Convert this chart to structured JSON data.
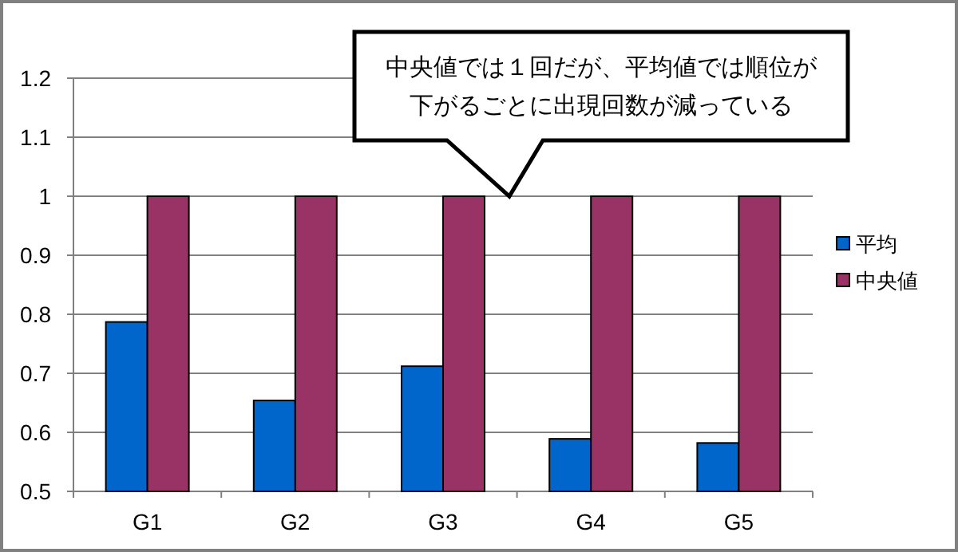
{
  "chart_data": {
    "type": "bar",
    "categories": [
      "G1",
      "G2",
      "G3",
      "G4",
      "G5"
    ],
    "series": [
      {
        "name": "平均",
        "color": "#0066cc",
        "values": [
          0.787,
          0.654,
          0.712,
          0.589,
          0.582
        ]
      },
      {
        "name": "中央値",
        "color": "#993366",
        "values": [
          1,
          1,
          1,
          1,
          1
        ]
      }
    ],
    "ylim": [
      0.5,
      1.2
    ],
    "yticks": [
      0.5,
      0.6,
      0.7,
      0.8,
      0.9,
      1,
      1.1,
      1.2
    ],
    "grid": "y",
    "legend": "right",
    "annotations": [
      "中央値では１回だが、平均値では順位が",
      "下がるごとに出現回数が減っている"
    ]
  }
}
